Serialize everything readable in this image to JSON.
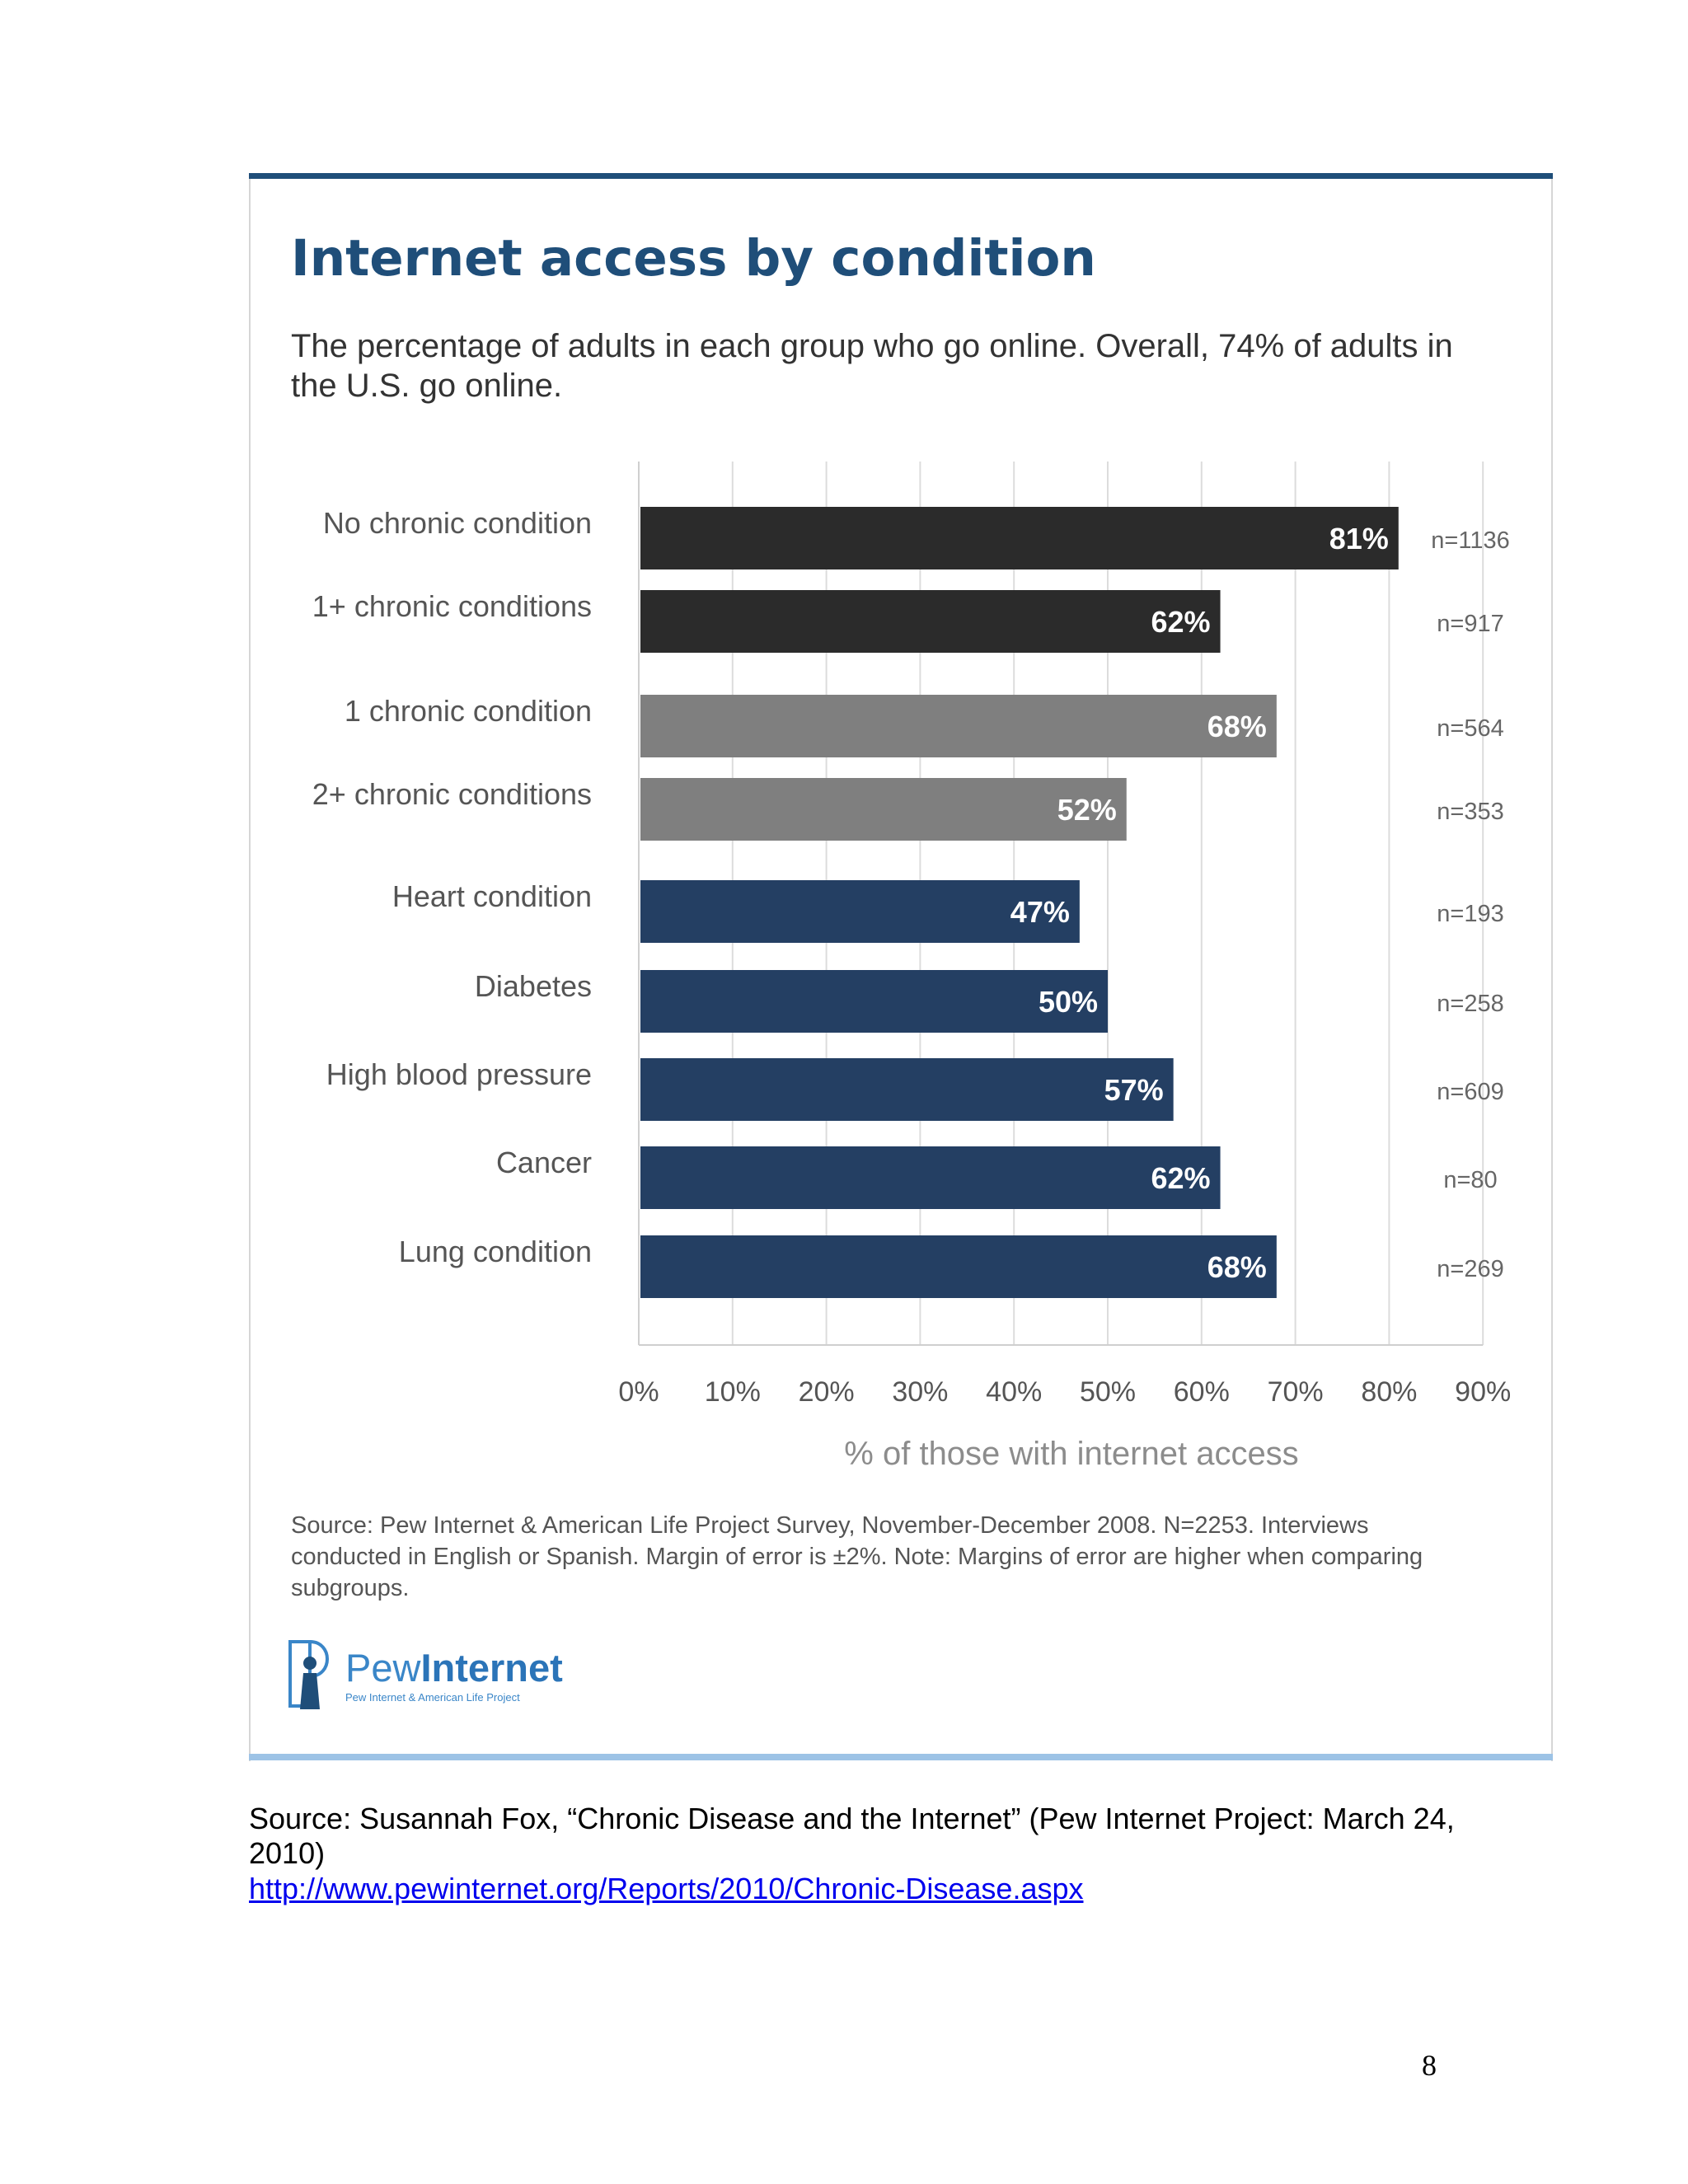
{
  "figure": {
    "title": "Internet access by condition",
    "subtitle": "The percentage of adults in each group who go online. Overall, 74% of adults in the U.S. go online.",
    "source_note": "Source: Pew Internet & American Life Project Survey, November-December 2008. N=2253. Interviews conducted in English or Spanish.  Margin of error is ±2%. Note: Margins of error are higher when comparing subgroups.",
    "logo": {
      "name_light": "Pew",
      "name_bold": "Internet",
      "tagline": "Pew Internet & American Life Project"
    }
  },
  "chart_data": {
    "type": "bar",
    "orientation": "horizontal",
    "title": "Internet access by condition",
    "subtitle": "The percentage of adults in each group who go online. Overall, 74% of adults in the U.S. go online.",
    "xlabel": "% of those with internet access",
    "ylabel": "",
    "xlim": [
      0,
      90
    ],
    "x_ticks": [
      "0%",
      "10%",
      "20%",
      "30%",
      "40%",
      "50%",
      "60%",
      "70%",
      "80%",
      "90%"
    ],
    "grid": "vertical",
    "categories": [
      "No chronic condition",
      "1+ chronic conditions",
      "1 chronic condition",
      "2+ chronic conditions",
      "Heart condition",
      "Diabetes",
      "High blood pressure",
      "Cancer",
      "Lung condition"
    ],
    "values": [
      81,
      62,
      68,
      52,
      47,
      50,
      57,
      62,
      68
    ],
    "value_labels": [
      "81%",
      "62%",
      "68%",
      "52%",
      "47%",
      "50%",
      "57%",
      "62%",
      "68%"
    ],
    "sample_sizes": [
      "n=1136",
      "n=917",
      "n=564",
      "n=353",
      "n=193",
      "n=258",
      "n=609",
      "n=80",
      "n=269"
    ],
    "groups": [
      {
        "color": "#2b2b2b",
        "members": [
          0,
          1
        ]
      },
      {
        "color": "#7f7f7f",
        "members": [
          2,
          3
        ]
      },
      {
        "color": "#243f63",
        "members": [
          4,
          5,
          6,
          7,
          8
        ]
      }
    ]
  },
  "caption": {
    "text": "Source: Susannah Fox, “Chronic Disease and the Internet” (Pew Internet Project: March 24, 2010)",
    "link": "http://www.pewinternet.org/Reports/2010/Chronic-Disease.aspx"
  },
  "page_number": "8"
}
